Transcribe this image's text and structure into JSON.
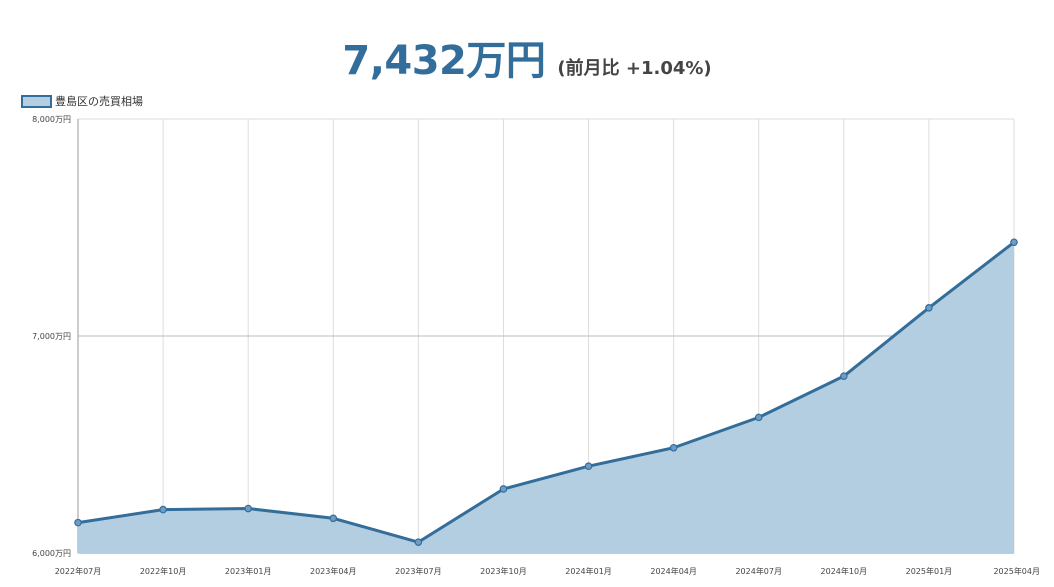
{
  "header": {
    "price": "7,432万円",
    "change": "(前月比 +1.04%)"
  },
  "legend": {
    "label": "豊島区の売買相場"
  },
  "colors": {
    "line": "#336d9a",
    "fill": "#b3cde1",
    "grid": "#dddddd"
  },
  "chart_data": {
    "type": "area",
    "series": [
      {
        "name": "豊島区の売買相場",
        "values": [
          6140,
          6200,
          6205,
          6160,
          6050,
          6295,
          6400,
          6485,
          6625,
          6815,
          7130,
          7432
        ]
      }
    ],
    "categories": [
      "2022年07月",
      "2022年10月",
      "2023年01月",
      "2023年04月",
      "2023年07月",
      "2023年10月",
      "2024年01月",
      "2024年04月",
      "2024年07月",
      "2024年10月",
      "2025年01月",
      "2025年04月"
    ],
    "y_ticks": [
      "6,000万円",
      "7,000万円",
      "8,000万円"
    ],
    "ylim": [
      6000,
      8000
    ],
    "grid": true,
    "legend_position": "top-left"
  }
}
